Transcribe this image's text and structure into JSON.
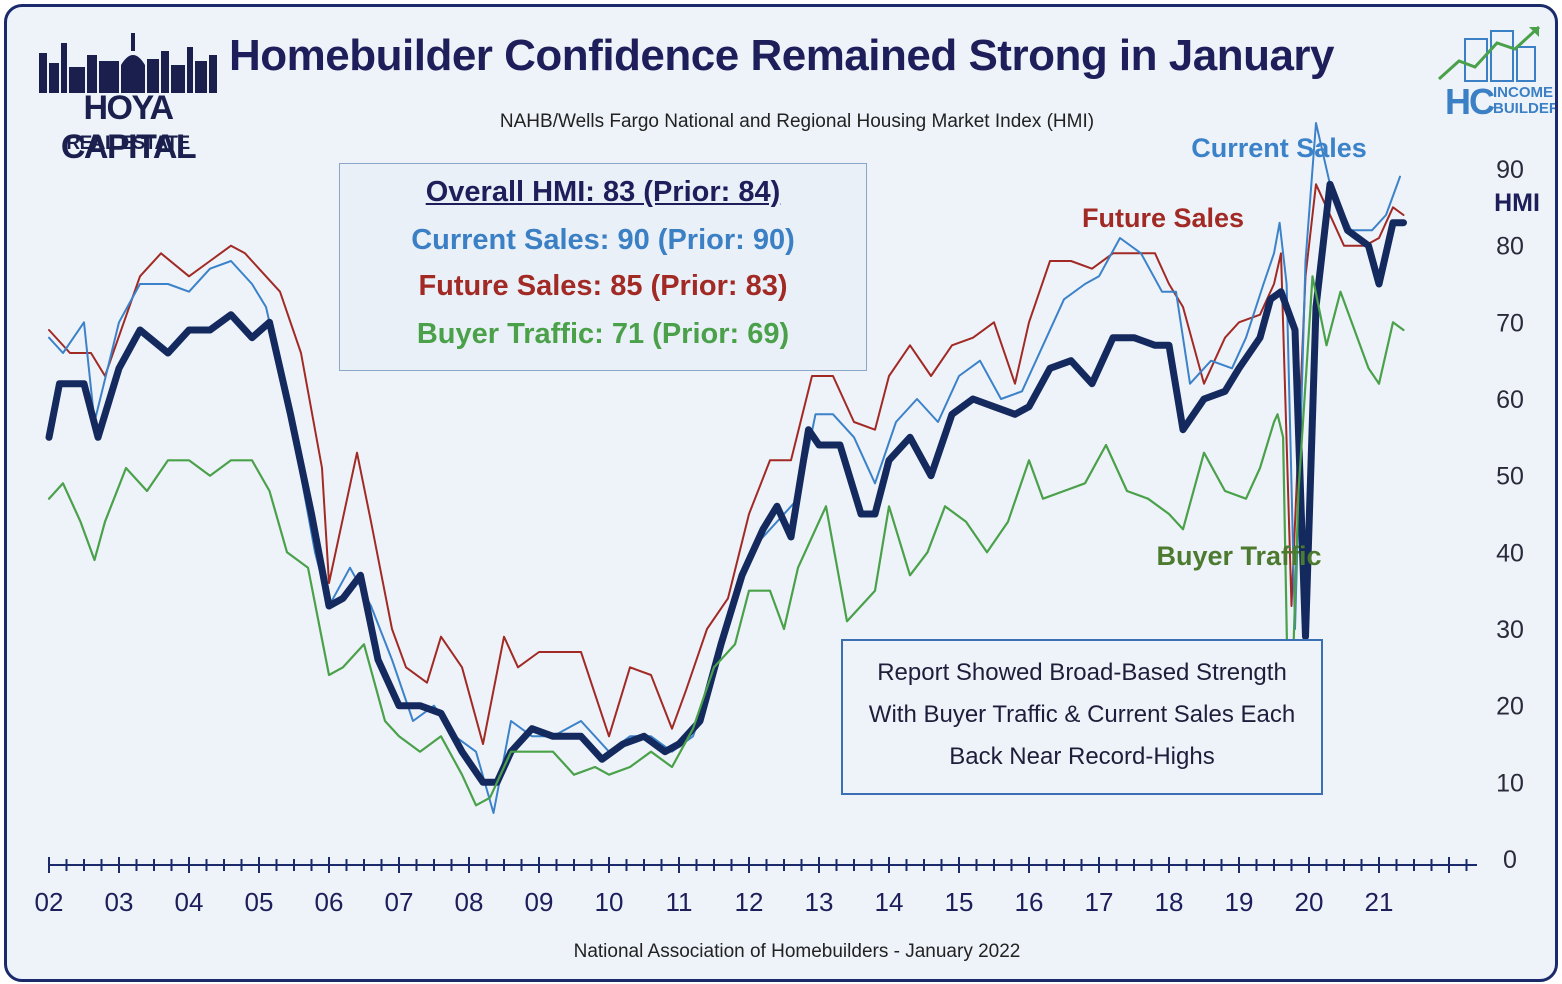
{
  "title": "Homebuilder Confidence Remained Strong in January",
  "subtitle": "NAHB/Wells Fargo National and Regional Housing Market Index (HMI)",
  "source": "National Association of Homebuilders - January 2022",
  "logos": {
    "left_line1": "HOYA CAPITAL",
    "left_line2": "REAL ESTATE",
    "right_mark": "HC",
    "right_line1": "INCOME",
    "right_line2": "BUILDER"
  },
  "stats_box": {
    "overall": "Overall HMI: 83 (Prior: 84)",
    "current": "Current Sales: 90 (Prior: 90)",
    "future": "Future Sales: 85 (Prior: 83)",
    "traffic": "Buyer Traffic: 71 (Prior: 69)"
  },
  "note_box": {
    "line1": "Report Showed Broad-Based Strength",
    "line2": "With Buyer Traffic & Current Sales Each",
    "line3": "Back Near Record-Highs"
  },
  "colors": {
    "hmi": "#142a5e",
    "current": "#3b82c9",
    "future": "#a12a25",
    "traffic": "#4aa14a",
    "title": "#1e1e5a"
  },
  "chart_data": {
    "type": "line",
    "title": "Homebuilder Confidence Remained Strong in January",
    "subtitle": "NAHB/Wells Fargo National and Regional Housing Market Index (HMI)",
    "ylabel": "HMI",
    "ylim": [
      0,
      90
    ],
    "yticks": [
      "0",
      "10",
      "20",
      "30",
      "40",
      "50",
      "60",
      "70",
      "80",
      "90"
    ],
    "xlim": [
      2002,
      2022.4
    ],
    "xticks": [
      {
        "x": 2002,
        "label": "02"
      },
      {
        "x": 2003,
        "label": "03"
      },
      {
        "x": 2004,
        "label": "04"
      },
      {
        "x": 2005,
        "label": "05"
      },
      {
        "x": 2006,
        "label": "06"
      },
      {
        "x": 2007,
        "label": "07"
      },
      {
        "x": 2008,
        "label": "08"
      },
      {
        "x": 2009,
        "label": "09"
      },
      {
        "x": 2010,
        "label": "10"
      },
      {
        "x": 2011,
        "label": "11"
      },
      {
        "x": 2012,
        "label": "12"
      },
      {
        "x": 2013,
        "label": "13"
      },
      {
        "x": 2014,
        "label": "14"
      },
      {
        "x": 2015,
        "label": "15"
      },
      {
        "x": 2016,
        "label": "16"
      },
      {
        "x": 2017,
        "label": "17"
      },
      {
        "x": 2018,
        "label": "18"
      },
      {
        "x": 2019,
        "label": "19"
      },
      {
        "x": 2020,
        "label": "20"
      },
      {
        "x": 2021,
        "label": "21"
      }
    ],
    "grid": false,
    "series": [
      {
        "name": "Future Sales",
        "key": "future",
        "x": [
          2002.0,
          2002.3,
          2002.6,
          2002.8,
          2003.3,
          2003.6,
          2004.0,
          2004.3,
          2004.6,
          2004.8,
          2005.0,
          2005.3,
          2005.6,
          2005.9,
          2006.0,
          2006.4,
          2006.6,
          2006.9,
          2007.1,
          2007.4,
          2007.6,
          2007.9,
          2008.2,
          2008.5,
          2008.7,
          2009.0,
          2009.3,
          2009.6,
          2010.0,
          2010.3,
          2010.6,
          2010.9,
          2011.1,
          2011.4,
          2011.7,
          2012.0,
          2012.3,
          2012.6,
          2012.9,
          2013.2,
          2013.5,
          2013.8,
          2014.0,
          2014.3,
          2014.6,
          2014.9,
          2015.2,
          2015.5,
          2015.8,
          2016.0,
          2016.3,
          2016.6,
          2016.9,
          2017.2,
          2017.5,
          2017.8,
          2018.0,
          2018.2,
          2018.5,
          2018.8,
          2019.0,
          2019.3,
          2019.5,
          2019.6,
          2019.75,
          2019.95,
          2020.1,
          2020.25,
          2020.5,
          2020.8,
          2021.0,
          2021.2,
          2021.35
        ],
        "values": [
          69,
          66,
          66,
          63,
          76,
          79,
          76,
          78,
          80,
          79,
          77,
          74,
          66,
          51,
          36,
          53,
          44,
          30,
          25,
          23,
          29,
          25,
          15,
          29,
          25,
          27,
          27,
          27,
          16,
          25,
          24,
          17,
          22,
          30,
          34,
          45,
          52,
          52,
          63,
          63,
          57,
          56,
          63,
          67,
          63,
          67,
          68,
          70,
          62,
          70,
          78,
          78,
          77,
          79,
          79,
          79,
          75,
          72,
          62,
          68,
          70,
          71,
          75,
          79,
          33,
          76,
          88,
          85,
          80,
          80,
          81,
          85,
          84
        ]
      },
      {
        "name": "Current Sales",
        "key": "current",
        "x": [
          2002.0,
          2002.2,
          2002.5,
          2002.65,
          2003.0,
          2003.3,
          2003.7,
          2004.0,
          2004.3,
          2004.6,
          2004.9,
          2005.1,
          2005.4,
          2005.8,
          2006.0,
          2006.3,
          2006.6,
          2006.9,
          2007.2,
          2007.5,
          2007.8,
          2008.1,
          2008.35,
          2008.6,
          2008.9,
          2009.2,
          2009.6,
          2010.0,
          2010.3,
          2010.6,
          2010.9,
          2011.2,
          2011.5,
          2011.8,
          2012.1,
          2012.4,
          2012.7,
          2012.95,
          2013.2,
          2013.5,
          2013.8,
          2014.1,
          2014.4,
          2014.7,
          2015.0,
          2015.3,
          2015.6,
          2015.9,
          2016.2,
          2016.5,
          2016.8,
          2017.0,
          2017.3,
          2017.6,
          2017.9,
          2018.1,
          2018.3,
          2018.6,
          2018.9,
          2019.1,
          2019.35,
          2019.5,
          2019.58,
          2019.68,
          2019.8,
          2019.95,
          2020.1,
          2020.3,
          2020.6,
          2020.9,
          2021.1,
          2021.3
        ],
        "values": [
          68,
          66,
          70,
          57,
          70,
          75,
          75,
          74,
          77,
          78,
          75,
          72,
          60,
          40,
          33,
          38,
          33,
          26,
          18,
          20,
          16,
          14,
          6,
          18,
          16,
          16,
          18,
          14,
          16,
          16,
          14,
          16,
          24,
          34,
          41,
          44,
          47,
          58,
          58,
          55,
          49,
          57,
          60,
          57,
          63,
          65,
          60,
          61,
          67,
          73,
          75,
          76,
          81,
          79,
          74,
          74,
          62,
          65,
          64,
          68,
          75,
          79,
          83,
          75,
          30,
          78,
          96,
          88,
          82,
          82,
          84,
          89
        ]
      },
      {
        "name": "HMI",
        "key": "hmi",
        "x": [
          2002.0,
          2002.15,
          2002.5,
          2002.7,
          2003.0,
          2003.3,
          2003.7,
          2004.0,
          2004.3,
          2004.6,
          2004.9,
          2005.15,
          2005.45,
          2005.75,
          2006.0,
          2006.2,
          2006.45,
          2006.7,
          2007.0,
          2007.3,
          2007.6,
          2007.9,
          2008.2,
          2008.4,
          2008.6,
          2008.9,
          2009.2,
          2009.6,
          2009.9,
          2010.2,
          2010.5,
          2010.8,
          2011.0,
          2011.3,
          2011.6,
          2011.9,
          2012.2,
          2012.4,
          2012.6,
          2012.85,
          2013.0,
          2013.3,
          2013.6,
          2013.8,
          2014.0,
          2014.3,
          2014.6,
          2014.9,
          2015.2,
          2015.5,
          2015.8,
          2016.0,
          2016.3,
          2016.6,
          2016.9,
          2017.2,
          2017.5,
          2017.8,
          2018.0,
          2018.2,
          2018.5,
          2018.8,
          2019.0,
          2019.3,
          2019.45,
          2019.6,
          2019.8,
          2019.95,
          2020.1,
          2020.3,
          2020.55,
          2020.85,
          2021.0,
          2021.2,
          2021.35
        ],
        "values": [
          55,
          62,
          62,
          55,
          64,
          69,
          66,
          69,
          69,
          71,
          68,
          70,
          58,
          45,
          33,
          34,
          37,
          26,
          20,
          20,
          19,
          14,
          10,
          10,
          14,
          17,
          16,
          16,
          13,
          15,
          16,
          14,
          15,
          18,
          28,
          37,
          43,
          46,
          42,
          56,
          54,
          54,
          45,
          45,
          52,
          55,
          50,
          58,
          60,
          59,
          58,
          59,
          64,
          65,
          62,
          68,
          68,
          67,
          67,
          56,
          60,
          61,
          64,
          68,
          73,
          74,
          69,
          29,
          72,
          88,
          82,
          80,
          75,
          83,
          83
        ]
      },
      {
        "name": "Buyer Traffic",
        "key": "traffic",
        "x": [
          2002.0,
          2002.2,
          2002.45,
          2002.65,
          2002.8,
          2003.1,
          2003.4,
          2003.7,
          2004.0,
          2004.3,
          2004.6,
          2004.9,
          2005.15,
          2005.4,
          2005.7,
          2006.0,
          2006.2,
          2006.5,
          2006.8,
          2007.0,
          2007.3,
          2007.6,
          2007.9,
          2008.1,
          2008.3,
          2008.6,
          2008.9,
          2009.2,
          2009.5,
          2009.8,
          2010.0,
          2010.3,
          2010.6,
          2010.9,
          2011.2,
          2011.5,
          2011.8,
          2012.0,
          2012.3,
          2012.5,
          2012.7,
          2012.9,
          2013.1,
          2013.4,
          2013.6,
          2013.8,
          2014.0,
          2014.3,
          2014.55,
          2014.8,
          2015.1,
          2015.4,
          2015.7,
          2016.0,
          2016.2,
          2016.5,
          2016.8,
          2017.1,
          2017.4,
          2017.7,
          2018.0,
          2018.2,
          2018.5,
          2018.8,
          2019.1,
          2019.3,
          2019.5,
          2019.55,
          2019.63,
          2019.72,
          2019.85,
          2020.05,
          2020.25,
          2020.45,
          2020.65,
          2020.85,
          2021.0,
          2021.2,
          2021.35
        ],
        "values": [
          47,
          49,
          44,
          39,
          44,
          51,
          48,
          52,
          52,
          50,
          52,
          52,
          48,
          40,
          38,
          24,
          25,
          28,
          18,
          16,
          14,
          16,
          11,
          7,
          8,
          14,
          14,
          14,
          11,
          12,
          11,
          12,
          14,
          12,
          17,
          25,
          28,
          35,
          35,
          30,
          38,
          42,
          46,
          31,
          33,
          35,
          46,
          37,
          40,
          46,
          44,
          40,
          44,
          52,
          47,
          48,
          49,
          54,
          48,
          47,
          45,
          43,
          53,
          48,
          47,
          51,
          57,
          58,
          55,
          11,
          48,
          76,
          67,
          74,
          69,
          64,
          62,
          70,
          69
        ]
      }
    ],
    "labels": {
      "current": "Current Sales",
      "future": "Future Sales",
      "traffic": "Buyer Traffic",
      "hmi": "HMI"
    }
  }
}
